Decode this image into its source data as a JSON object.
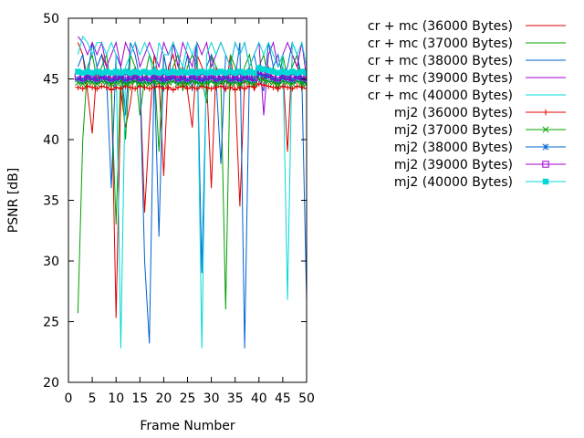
{
  "chart_data": {
    "type": "line",
    "title": "",
    "xlabel": "Frame Number",
    "ylabel": "PSNR [dB]",
    "xlim": [
      0,
      50
    ],
    "ylim": [
      20,
      50
    ],
    "xticks": [
      0,
      5,
      10,
      15,
      20,
      25,
      30,
      35,
      40,
      45,
      50
    ],
    "yticks": [
      20,
      25,
      30,
      35,
      40,
      45,
      50
    ],
    "grid": false,
    "legend_position": "outside-right-top",
    "x": [
      2,
      3,
      4,
      5,
      6,
      7,
      8,
      9,
      10,
      11,
      12,
      13,
      14,
      15,
      16,
      17,
      18,
      19,
      20,
      21,
      22,
      23,
      24,
      25,
      26,
      27,
      28,
      29,
      30,
      31,
      32,
      33,
      34,
      35,
      36,
      37,
      38,
      39,
      40,
      41,
      42,
      43,
      44,
      45,
      46,
      47,
      48,
      49,
      50
    ],
    "series": [
      {
        "name": "cr + mc (36000 Bytes)",
        "color": "#e00000",
        "marker": "none",
        "values": [
          48,
          47,
          44,
          40.5,
          46,
          47,
          46,
          45,
          25.3,
          44,
          41,
          43,
          46,
          45,
          34,
          41,
          47,
          45,
          37,
          46,
          47,
          45,
          46,
          44,
          41,
          47,
          46,
          45,
          36,
          46,
          45,
          44,
          47,
          44,
          34.5,
          45,
          46,
          44,
          45.5,
          45,
          46,
          45,
          44,
          46,
          39,
          47,
          46,
          45,
          44.5
        ]
      },
      {
        "name": "cr + mc (37000 Bytes)",
        "color": "#00a000",
        "marker": "none",
        "values": [
          25.7,
          40,
          46,
          47,
          45,
          46,
          47,
          44,
          33,
          46,
          40,
          47,
          46,
          42,
          45,
          47,
          46,
          39,
          47,
          45,
          46,
          47,
          44,
          46,
          47,
          46,
          45,
          43,
          47,
          46,
          45,
          26,
          47,
          46,
          44,
          46,
          47,
          45,
          46,
          47,
          45,
          46,
          44,
          47,
          45,
          46,
          47,
          44,
          46
        ]
      },
      {
        "name": "cr + mc (38000 Bytes)",
        "color": "#0060d0",
        "marker": "none",
        "values": [
          46,
          47,
          45,
          48,
          46,
          47,
          45,
          36,
          47,
          46,
          42,
          48,
          47,
          45,
          30,
          23.2,
          46,
          32,
          47,
          45,
          48,
          46,
          45,
          47,
          44,
          48,
          29,
          46,
          47,
          45,
          38,
          47,
          46,
          45,
          48,
          22.8,
          46,
          47,
          45,
          44,
          48,
          46,
          47,
          45,
          46,
          48,
          47,
          45,
          26.8
        ]
      },
      {
        "name": "cr + mc (39000 Bytes)",
        "color": "#a000d0",
        "marker": "none",
        "values": [
          48.5,
          48,
          47,
          48,
          47,
          48,
          46,
          47,
          48,
          46,
          48,
          47,
          48,
          46,
          47,
          48,
          47,
          46,
          48,
          47,
          48,
          46,
          48,
          47,
          46,
          48,
          47,
          48,
          46,
          47,
          48,
          47,
          46,
          48,
          47,
          48,
          46,
          47,
          48,
          42,
          47,
          48,
          46,
          47,
          48,
          47,
          46,
          48,
          45
        ]
      },
      {
        "name": "cr + mc (40000 Bytes)",
        "color": "#00d8d8",
        "marker": "none",
        "values": [
          47,
          48.5,
          48,
          47,
          48,
          48,
          47,
          48,
          47,
          22.8,
          46,
          47,
          48,
          47,
          48,
          47,
          45,
          48,
          47,
          47,
          48,
          47,
          46,
          48,
          47,
          48,
          22.8,
          47,
          48,
          47,
          48,
          47,
          46,
          48,
          47,
          48,
          46,
          47,
          48,
          47,
          48,
          47,
          46,
          47,
          26.8,
          48,
          47,
          48,
          46
        ]
      },
      {
        "name": "mj2 (36000 Bytes)",
        "color": "#e00000",
        "marker": "plus",
        "values": [
          44.3,
          44.2,
          44.4,
          44.3,
          44.2,
          44.4,
          44.3,
          44.1,
          44.3,
          44.2,
          44.4,
          44.3,
          44.2,
          44.4,
          44.3,
          44.2,
          44.3,
          44.4,
          44.2,
          44.3,
          44.1,
          44.3,
          44.4,
          44.2,
          44.3,
          44.2,
          44.4,
          44.3,
          44.2,
          44.3,
          44.4,
          44.2,
          44.3,
          44.1,
          44.3,
          44.2,
          44.4,
          44.3,
          44.6,
          44.5,
          44.4,
          44.3,
          44.2,
          44.4,
          44.3,
          44.2,
          44.4,
          44.3,
          44.2
        ]
      },
      {
        "name": "mj2 (37000 Bytes)",
        "color": "#00a000",
        "marker": "x",
        "values": [
          44.7,
          44.6,
          44.8,
          44.7,
          44.6,
          44.8,
          44.7,
          44.6,
          44.7,
          44.8,
          44.6,
          44.7,
          44.8,
          44.6,
          44.7,
          44.6,
          44.8,
          44.7,
          44.6,
          44.7,
          44.8,
          44.6,
          44.7,
          44.6,
          44.8,
          44.7,
          44.6,
          44.7,
          44.8,
          44.6,
          44.7,
          44.8,
          44.6,
          44.7,
          44.6,
          44.8,
          44.7,
          44.6,
          45.0,
          44.9,
          44.8,
          44.7,
          44.6,
          44.8,
          44.7,
          44.6,
          44.8,
          44.7,
          44.6
        ]
      },
      {
        "name": "mj2 (38000 Bytes)",
        "color": "#0060d0",
        "marker": "star",
        "values": [
          45.0,
          44.9,
          45.1,
          45.0,
          44.9,
          45.1,
          45.0,
          44.9,
          45.0,
          45.1,
          44.9,
          45.0,
          45.1,
          44.9,
          45.0,
          44.9,
          45.1,
          45.0,
          44.9,
          45.0,
          45.1,
          44.9,
          45.0,
          44.9,
          45.1,
          45.0,
          44.9,
          45.0,
          45.1,
          44.9,
          45.0,
          45.1,
          44.9,
          45.0,
          44.9,
          45.1,
          45.0,
          44.9,
          45.4,
          45.3,
          45.2,
          45.0,
          44.9,
          45.1,
          45.0,
          44.9,
          45.1,
          45.0,
          44.9
        ]
      },
      {
        "name": "mj2 (39000 Bytes)",
        "color": "#a000d0",
        "marker": "box",
        "values": [
          45.2,
          45.1,
          45.3,
          45.2,
          45.1,
          45.3,
          45.2,
          45.1,
          45.2,
          45.3,
          45.1,
          45.2,
          45.3,
          45.1,
          45.2,
          45.1,
          45.3,
          45.2,
          45.1,
          45.2,
          45.3,
          45.1,
          45.2,
          45.1,
          45.3,
          45.2,
          45.1,
          45.2,
          45.3,
          45.1,
          45.2,
          45.3,
          45.1,
          45.2,
          45.1,
          45.3,
          45.2,
          45.1,
          45.7,
          45.6,
          45.4,
          45.2,
          45.1,
          45.3,
          45.2,
          45.1,
          45.3,
          45.2,
          45.1
        ]
      },
      {
        "name": "mj2 (40000 Bytes)",
        "color": "#00d8d8",
        "marker": "filled-box",
        "values": [
          45.6,
          45.5,
          45.6,
          45.5,
          45.6,
          45.5,
          45.6,
          45.5,
          45.6,
          45.5,
          45.6,
          45.5,
          45.6,
          45.5,
          45.6,
          45.5,
          45.6,
          45.5,
          45.6,
          45.5,
          45.6,
          45.5,
          45.6,
          45.5,
          45.6,
          45.5,
          45.6,
          45.5,
          45.6,
          45.5,
          45.6,
          45.5,
          45.6,
          45.5,
          45.6,
          45.5,
          45.6,
          45.5,
          45.9,
          45.8,
          45.7,
          45.6,
          45.5,
          45.6,
          45.5,
          45.6,
          45.5,
          45.6,
          45.5
        ]
      }
    ]
  }
}
